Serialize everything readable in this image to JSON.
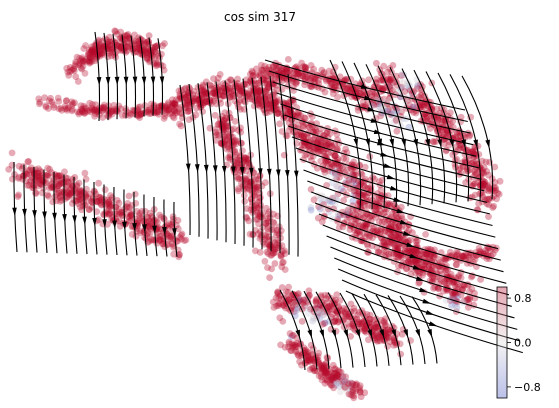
{
  "chart_data": {
    "type": "scatter",
    "title": "cos sim 317",
    "xlabel": "",
    "ylabel": "",
    "axes_visible": false,
    "grid": false,
    "overlay": "velocity streamlines with arrowheads",
    "colorbar": {
      "cmap": "coolwarm",
      "range": [
        -1,
        1
      ],
      "ticks": [
        0.8,
        0.0,
        -0.8
      ],
      "tick_labels": [
        "0.8",
        "0.0",
        "−0.8"
      ],
      "placement": "right-bottom"
    },
    "colors": {
      "high": "#b40426",
      "mid": "#dddcdc",
      "low": "#3b4cc0",
      "streamline": "#000000"
    },
    "point_alpha": 0.35,
    "value_summary": "mostly high positive cosine similarity (~0.9-1.0); a band of low/negative values (~-0.6) along the centre-right region"
  }
}
